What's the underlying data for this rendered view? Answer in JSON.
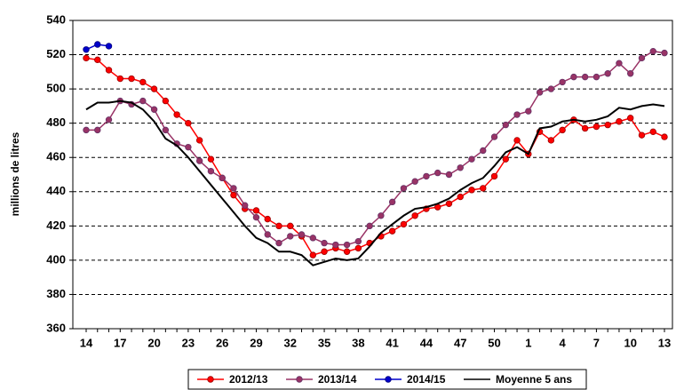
{
  "chart_data": {
    "type": "line",
    "y_label": "millions de litres",
    "categories": [
      "14",
      null,
      null,
      "17",
      null,
      null,
      "20",
      null,
      null,
      "23",
      null,
      null,
      "26",
      null,
      null,
      "29",
      null,
      null,
      "32",
      null,
      null,
      "35",
      null,
      null,
      "38",
      null,
      null,
      "41",
      null,
      null,
      "44",
      null,
      null,
      "47",
      null,
      null,
      "50",
      null,
      null,
      "1",
      null,
      null,
      "4",
      null,
      null,
      "7",
      null,
      null,
      "10",
      null,
      null,
      "13"
    ],
    "ylim": [
      360,
      540
    ],
    "yticks": [
      360,
      380,
      400,
      420,
      440,
      460,
      480,
      500,
      520,
      540
    ],
    "grid": true,
    "series": [
      {
        "name": "2012/13",
        "color": "#ff0000",
        "marker_edge": "#990000",
        "markers": true,
        "values": [
          518,
          517,
          511,
          506,
          506,
          504,
          500,
          493,
          485,
          480,
          470,
          459,
          448,
          438,
          430,
          429,
          424,
          420,
          420,
          414,
          403,
          405,
          407,
          405,
          407,
          410,
          414,
          417,
          421,
          426,
          430,
          431,
          433,
          437,
          441,
          442,
          449,
          459,
          470,
          462,
          475,
          470,
          476,
          482,
          477,
          478,
          479,
          481,
          483,
          473,
          475,
          472
        ]
      },
      {
        "name": "2013/14",
        "color": "#993366",
        "marker_edge": "#663366",
        "markers": true,
        "values": [
          476,
          476,
          482,
          493,
          491,
          493,
          488,
          476,
          468,
          466,
          458,
          452,
          448,
          442,
          432,
          425,
          415,
          410,
          414,
          415,
          413,
          410,
          409,
          409,
          411,
          420,
          426,
          434,
          442,
          446,
          449,
          451,
          450,
          454,
          459,
          464,
          472,
          479,
          485,
          487,
          498,
          500,
          504,
          507,
          507,
          507,
          509,
          515,
          509,
          518,
          522,
          521
        ]
      },
      {
        "name": "2014/15",
        "color": "#0000cc",
        "marker_edge": "#000080",
        "markers": true,
        "values": [
          523,
          526,
          525,
          null,
          null,
          null,
          null,
          null,
          null,
          null,
          null,
          null,
          null,
          null,
          null,
          null,
          null,
          null,
          null,
          null,
          null,
          null,
          null,
          null,
          null,
          null,
          null,
          null,
          null,
          null,
          null,
          null,
          null,
          null,
          null,
          null,
          null,
          null,
          null,
          null,
          null,
          null,
          null,
          null,
          null,
          null,
          null,
          null,
          null,
          null,
          null,
          null
        ]
      },
      {
        "name": "Moyenne 5 ans",
        "color": "#000000",
        "markers": false,
        "values": [
          488,
          492,
          492,
          493,
          492,
          488,
          481,
          471,
          467,
          460,
          452,
          444,
          436,
          428,
          420,
          413,
          410,
          405,
          405,
          403,
          397,
          399,
          401,
          400,
          401,
          408,
          416,
          421,
          426,
          430,
          431,
          433,
          436,
          441,
          445,
          448,
          455,
          463,
          466,
          462,
          477,
          478,
          481,
          482,
          481,
          482,
          484,
          489,
          488,
          490,
          491,
          490
        ]
      }
    ],
    "legend": "bottom"
  }
}
